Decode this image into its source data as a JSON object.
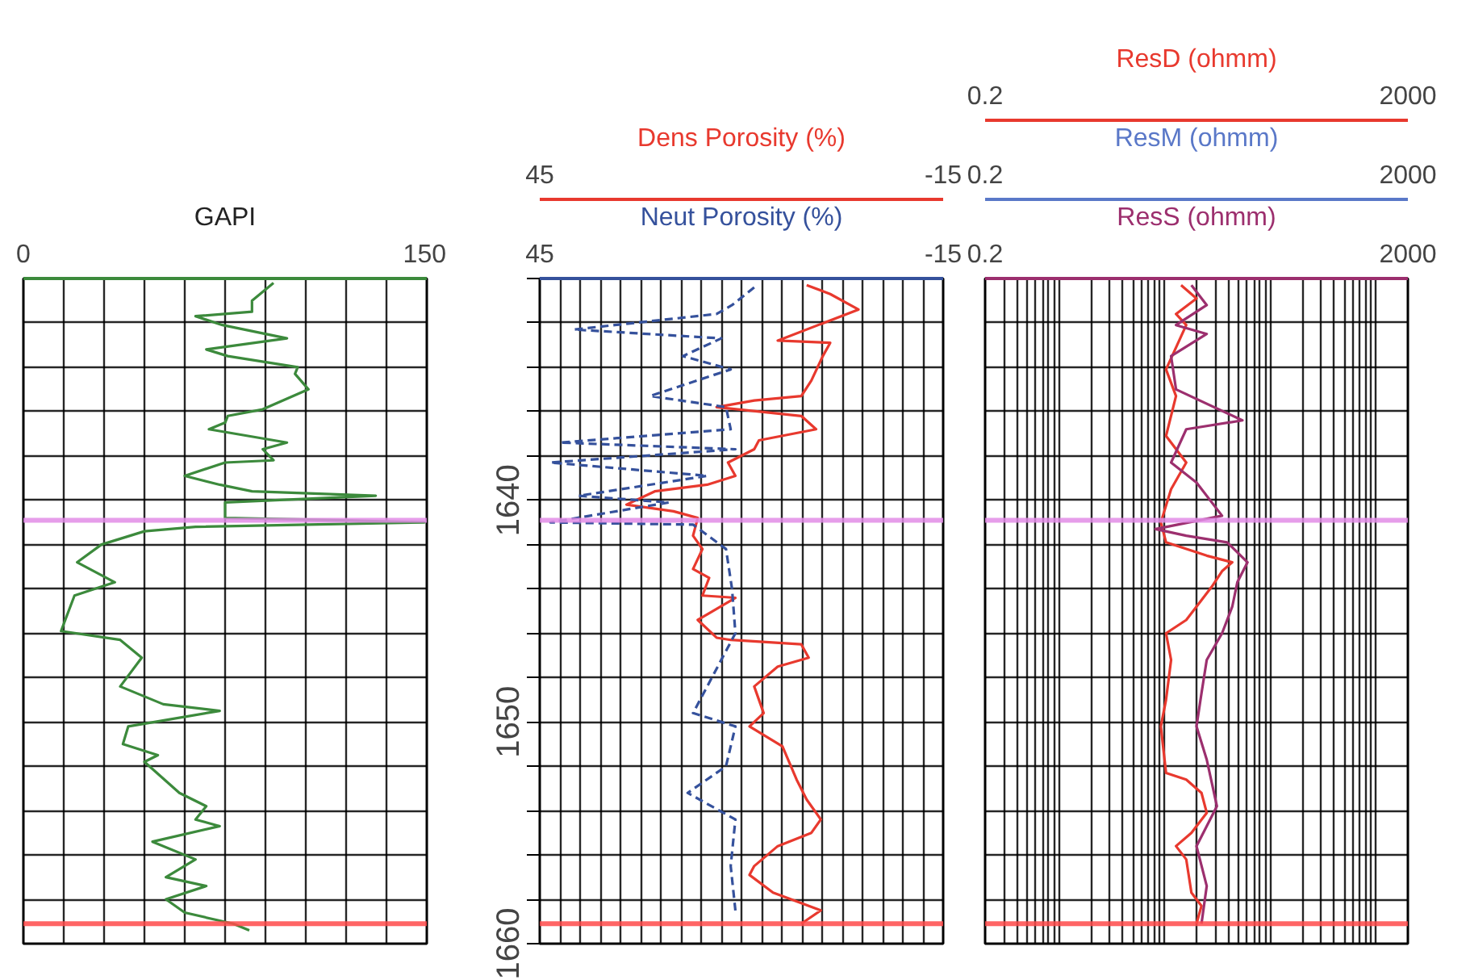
{
  "chart_data": [
    {
      "type": "line",
      "xlabel": "GAPI",
      "xlim": [
        0,
        150
      ],
      "xticks": [
        0,
        {
          "value": 15,
          "label": null
        },
        {
          "value": 30,
          "label": null
        },
        {
          "value": 45,
          "label": null
        },
        {
          "value": 60,
          "label": null
        },
        {
          "value": 75,
          "label": null
        },
        {
          "value": 90,
          "label": null
        },
        {
          "value": 105,
          "label": null
        },
        {
          "value": 120,
          "label": null
        },
        {
          "value": 135,
          "label": null
        },
        150
      ],
      "ylim": [
        1660,
        1630
      ],
      "yticks": [
        {
          "value": 1630,
          "label": null
        },
        {
          "value": 1632,
          "label": null
        },
        {
          "value": 1634,
          "label": null
        },
        {
          "value": 1636,
          "label": null
        },
        {
          "value": 1638,
          "label": null
        },
        1640,
        {
          "value": 1642,
          "label": null
        },
        {
          "value": 1644,
          "label": null
        },
        {
          "value": 1646,
          "label": null
        },
        {
          "value": 1648,
          "label": null
        },
        1650,
        {
          "value": 1652,
          "label": null
        },
        {
          "value": 1654,
          "label": null
        },
        {
          "value": 1656,
          "label": null
        },
        {
          "value": 1658,
          "label": null
        },
        1660
      ],
      "tick_labels": "x",
      "grid": true,
      "ref_lines": [
        {
          "axis": "y",
          "value": 1640.9,
          "label": null,
          "color": "#e28ce6"
        },
        {
          "axis": "y",
          "value": 1659.1,
          "label": null,
          "color": "#ff4a4a"
        }
      ],
      "series": [
        {
          "color": "#3c8a3c",
          "x": [
            93,
            85,
            85,
            64,
            74,
            98,
            68,
            76,
            102,
            101,
            106,
            89,
            76,
            75,
            69,
            98,
            89,
            93,
            75,
            60,
            73,
            85,
            131,
            75,
            75,
            117,
            149,
            64,
            45,
            29,
            20,
            34,
            19,
            14,
            36,
            44,
            36,
            52,
            73,
            39,
            37,
            50,
            45,
            58,
            68,
            64,
            73,
            48,
            64,
            53,
            68,
            53,
            60,
            78,
            84
          ],
          "values": [
            1630.2,
            1631.0,
            1631.5,
            1631.7,
            1632.1,
            1632.7,
            1633.2,
            1633.5,
            1634.0,
            1634.3,
            1635.0,
            1635.9,
            1636.2,
            1636.5,
            1636.8,
            1637.4,
            1637.7,
            1638.2,
            1638.3,
            1638.9,
            1639.3,
            1639.6,
            1639.8,
            1640.1,
            1640.8,
            1640.9,
            1641.0,
            1641.2,
            1641.4,
            1642.0,
            1642.8,
            1643.7,
            1644.3,
            1645.9,
            1646.3,
            1647.1,
            1648.4,
            1649.2,
            1649.5,
            1650.2,
            1651.0,
            1651.5,
            1651.8,
            1653.2,
            1653.8,
            1654.4,
            1654.7,
            1655.4,
            1656.2,
            1657.0,
            1657.4,
            1658.0,
            1658.6,
            1659.1,
            1659.4
          ]
        }
      ]
    },
    {
      "type": "line",
      "xlim": [
        45,
        -15
      ],
      "xticks": [
        45,
        {
          "value": 42,
          "label": null
        },
        {
          "value": 39,
          "label": null
        },
        {
          "value": 36,
          "label": null
        },
        {
          "value": 33,
          "label": null
        },
        {
          "value": 30,
          "label": null
        },
        {
          "value": 27,
          "label": null
        },
        {
          "value": 24,
          "label": null
        },
        {
          "value": 21,
          "label": null
        },
        {
          "value": 18,
          "label": null
        },
        {
          "value": 15,
          "label": null
        },
        {
          "value": 12,
          "label": null
        },
        {
          "value": 9,
          "label": null
        },
        {
          "value": 6,
          "label": null
        },
        {
          "value": 3,
          "label": null
        },
        {
          "value": 0,
          "label": null
        },
        {
          "value": -3,
          "label": null
        },
        {
          "value": -6,
          "label": null
        },
        {
          "value": -9,
          "label": null
        },
        {
          "value": -12,
          "label": null
        },
        -15
      ],
      "x2lim": [
        45,
        -15
      ],
      "x2ticks": [
        45,
        -15
      ],
      "ylim": [
        1660,
        1630
      ],
      "yticks": [
        {
          "value": 1630,
          "label": null
        },
        {
          "value": 1632,
          "label": null
        },
        {
          "value": 1634,
          "label": null
        },
        {
          "value": 1636,
          "label": null
        },
        {
          "value": 1638,
          "label": null
        },
        1640,
        {
          "value": 1642,
          "label": null
        },
        {
          "value": 1644,
          "label": null
        },
        {
          "value": 1646,
          "label": null
        },
        {
          "value": 1648,
          "label": null
        },
        1650,
        {
          "value": 1652,
          "label": null
        },
        {
          "value": 1654,
          "label": null
        },
        {
          "value": 1656,
          "label": null
        },
        {
          "value": 1658,
          "label": null
        },
        1660
      ],
      "grid": true,
      "ref_lines": [
        {
          "axis": "y",
          "value": 1640.9,
          "label": null,
          "color": "#e28ce6"
        },
        {
          "axis": "y",
          "value": 1659.1,
          "label": null,
          "color": "#ff4a4a"
        }
      ],
      "series": [
        {
          "name": "Dens Porosity (%)",
          "axis": "x2",
          "color": "#e8392e",
          "line_style": "solid",
          "x": [
            5.3,
            1.8,
            -2.4,
            9.6,
            1.8,
            2.9,
            4.6,
            6.1,
            13.1,
            18.7,
            6.1,
            3.9,
            12.4,
            13.1,
            17.0,
            15.9,
            20.1,
            27.9,
            32.1,
            25.1,
            21.5,
            22.2,
            20.8,
            22.2,
            19.8,
            20.8,
            15.9,
            21.5,
            18.7,
            16.6,
            6.1,
            5.0,
            9.6,
            13.1,
            11.7,
            13.8,
            8.9,
            6.8,
            5.3,
            3.2,
            4.6,
            9.6,
            13.1,
            13.8,
            10.3,
            3.2,
            6.1
          ],
          "values": [
            1630.3,
            1630.7,
            1631.4,
            1632.8,
            1632.9,
            1633.5,
            1634.6,
            1635.3,
            1635.5,
            1635.8,
            1636.2,
            1636.8,
            1637.3,
            1637.7,
            1638.3,
            1638.9,
            1639.3,
            1639.6,
            1640.2,
            1640.5,
            1640.8,
            1641.6,
            1642.2,
            1643.1,
            1643.5,
            1644.3,
            1644.4,
            1645.4,
            1646.2,
            1646.3,
            1646.5,
            1647.1,
            1647.5,
            1648.4,
            1649.6,
            1650.2,
            1651.1,
            1652.6,
            1653.5,
            1654.4,
            1655.0,
            1655.6,
            1656.5,
            1656.9,
            1657.7,
            1658.5,
            1659.1
          ]
        },
        {
          "name": "Neut Porosity (%)",
          "color": "#35519c",
          "line_style": "dashed",
          "x": [
            13.1,
            16.4,
            18.7,
            39.9,
            18.0,
            23.7,
            16.6,
            28.6,
            17.3,
            16.6,
            42.0,
            15.9,
            43.4,
            20.1,
            39.2,
            25.8,
            43.4,
            22.2,
            17.3,
            16.4,
            15.9,
            22.2,
            15.9,
            17.3,
            23.0,
            15.9,
            16.6,
            15.9
          ],
          "values": [
            1630.4,
            1631.2,
            1631.6,
            1632.3,
            1632.7,
            1633.5,
            1634.1,
            1635.3,
            1635.8,
            1636.8,
            1637.4,
            1637.7,
            1638.3,
            1638.9,
            1639.8,
            1640.1,
            1641.0,
            1641.1,
            1642.2,
            1644.0,
            1646.0,
            1649.6,
            1650.2,
            1652.0,
            1653.2,
            1654.4,
            1656.5,
            1658.5
          ]
        }
      ]
    },
    {
      "type": "line",
      "log": "x",
      "xlim": [
        0.2,
        2000
      ],
      "xticks": [
        0.2,
        {
          "value": 0.3,
          "label": null
        },
        {
          "value": 0.4,
          "label": null
        },
        {
          "value": 0.5,
          "label": null
        },
        {
          "value": 0.6,
          "label": null
        },
        {
          "value": 0.7,
          "label": null
        },
        {
          "value": 0.8,
          "label": null
        },
        {
          "value": 0.9,
          "label": null
        },
        {
          "value": 1,
          "label": null
        },
        {
          "value": 2,
          "label": null
        },
        {
          "value": 3,
          "label": null
        },
        {
          "value": 4,
          "label": null
        },
        {
          "value": 5,
          "label": null
        },
        {
          "value": 6,
          "label": null
        },
        {
          "value": 7,
          "label": null
        },
        {
          "value": 8,
          "label": null
        },
        {
          "value": 9,
          "label": null
        },
        {
          "value": 10,
          "label": null
        },
        {
          "value": 20,
          "label": null
        },
        {
          "value": 30,
          "label": null
        },
        {
          "value": 40,
          "label": null
        },
        {
          "value": 50,
          "label": null
        },
        {
          "value": 60,
          "label": null
        },
        {
          "value": 70,
          "label": null
        },
        {
          "value": 80,
          "label": null
        },
        {
          "value": 90,
          "label": null
        },
        {
          "value": 100,
          "label": null
        },
        {
          "value": 200,
          "label": null
        },
        {
          "value": 300,
          "label": null
        },
        {
          "value": 400,
          "label": null
        },
        {
          "value": 500,
          "label": null
        },
        {
          "value": 600,
          "label": null
        },
        {
          "value": 700,
          "label": null
        },
        {
          "value": 800,
          "label": null
        },
        {
          "value": 900,
          "label": null
        },
        {
          "value": 1000,
          "label": null
        },
        2000
      ],
      "x2lim": [
        0.2,
        2000
      ],
      "x2ticks": [
        0.2,
        2000
      ],
      "annotations": [
        "0.2",
        "2000"
      ],
      "ylim": [
        1660,
        1630
      ],
      "yticks": [
        {
          "value": 1630,
          "label": null
        },
        {
          "value": 1632,
          "label": null
        },
        {
          "value": 1634,
          "label": null
        },
        {
          "value": 1636,
          "label": null
        },
        {
          "value": 1638,
          "label": null
        },
        1640,
        {
          "value": 1642,
          "label": null
        },
        {
          "value": 1644,
          "label": null
        },
        {
          "value": 1646,
          "label": null
        },
        {
          "value": 1648,
          "label": null
        },
        1650,
        {
          "value": 1652,
          "label": null
        },
        {
          "value": 1654,
          "label": null
        },
        {
          "value": 1656,
          "label": null
        },
        {
          "value": 1658,
          "label": null
        },
        1660
      ],
      "tick_labels": "x",
      "grid": true,
      "ref_lines": [
        {
          "axis": "y",
          "value": 1640.9,
          "label": null,
          "color": "#e28ce6"
        },
        {
          "axis": "y",
          "value": 1659.1,
          "label": null,
          "color": "#ff4a4a"
        }
      ],
      "series": [
        {
          "name": "ResD (ohmm)",
          "color": "#e8392e",
          "x": [
            14.3,
            20.0,
            12.8,
            16.0,
            10.3,
            12.8,
            10.3,
            16.0,
            11.5,
            9.2,
            10.3,
            25.0,
            43.6,
            34.9,
            27.9,
            20.0,
            16.0,
            10.3,
            11.5,
            10.3,
            9.2,
            10.3,
            16.0,
            22.3,
            25.0,
            17.9,
            12.8,
            16.0,
            17.9,
            22.3,
            20.0
          ],
          "values": [
            1630.3,
            1630.9,
            1631.6,
            1632.1,
            1634.1,
            1635.3,
            1637.1,
            1638.3,
            1639.5,
            1641.0,
            1641.9,
            1642.5,
            1642.8,
            1643.2,
            1643.9,
            1644.8,
            1645.4,
            1646.0,
            1647.2,
            1649.0,
            1650.2,
            1652.3,
            1652.6,
            1653.2,
            1654.1,
            1655.0,
            1655.6,
            1656.2,
            1657.7,
            1658.3,
            1659.1
          ]
        },
        {
          "name": "ResM (ohmm)",
          "axis": "x2",
          "color": "#5a78c8"
        },
        {
          "name": "ResS (ohmm)",
          "color": "#9c2f6e",
          "x": [
            17.9,
            25.0,
            12.8,
            25.0,
            11.5,
            12.8,
            54.4,
            16.0,
            11.5,
            20.0,
            34.9,
            8.2,
            16.0,
            39.0,
            60.8,
            48.7,
            43.6,
            34.9,
            25.0,
            22.3,
            20.0,
            25.0,
            31.2,
            20.0,
            25.0,
            22.3
          ],
          "values": [
            1630.3,
            1631.2,
            1632.1,
            1632.5,
            1633.5,
            1635.0,
            1636.4,
            1636.8,
            1638.3,
            1639.2,
            1640.7,
            1641.3,
            1641.6,
            1641.9,
            1642.8,
            1643.7,
            1644.8,
            1646.0,
            1647.2,
            1648.7,
            1650.2,
            1651.7,
            1653.8,
            1655.6,
            1657.4,
            1659.1
          ]
        }
      ]
    }
  ]
}
